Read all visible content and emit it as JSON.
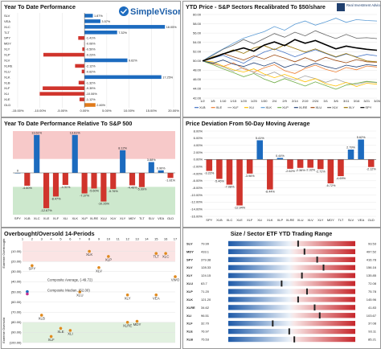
{
  "chart_data": [
    {
      "type": "bar",
      "title": "Year To Date Performance",
      "orientation": "horizontal",
      "categories": [
        "SLV",
        "VEA",
        "XLC",
        "TLT",
        "SPY",
        "MDY",
        "XLY",
        "XLP",
        "XLV",
        "XLRE",
        "XLU",
        "XLK",
        "XLB",
        "XLF",
        "XLI",
        "XLE",
        "GLD"
      ],
      "values": [
        1.87,
        3.57,
        18.05,
        7.32,
        -1.41,
        -0.06,
        -0.5,
        -9.23,
        9.62,
        -2.12,
        -0.62,
        17.25,
        -1.32,
        -9.39,
        -10.06,
        -1.12,
        2.46
      ],
      "value_labels": [
        "1.87%",
        "3.57%",
        "18.05%",
        "7.32%",
        "-1.41%",
        "-0.06%",
        "-0.50%",
        "-9.23%",
        "9.62%",
        "-2.12%",
        "-0.62%",
        "17.25%",
        "-1.32%",
        "-9.39%",
        "-10.06%",
        "-1.12%",
        "2.46%"
      ],
      "colors": {
        "positive": "#1c6bbf",
        "negative": "#d0342c",
        "highlight": "#e07a1a"
      },
      "xlim": [
        -15,
        20
      ],
      "xticks": [
        "-15.00%",
        "-10.00%",
        "-5.00%",
        "0.00%",
        "5.00%",
        "10.00%",
        "15.00%",
        "20.00%"
      ],
      "grid": true
    },
    {
      "type": "line",
      "title": "YTD Price - S&P Sectors Recalibrated To $50/share",
      "x": [
        "1/2",
        "1/5",
        "1/10",
        "1/15",
        "1/20",
        "1/25",
        "1/30",
        "2/4",
        "2/9",
        "2/14",
        "2/19",
        "2/24",
        "3/1",
        "3/6",
        "3/11",
        "3/16",
        "3/21",
        "3/26"
      ],
      "ylim": [
        42,
        60
      ],
      "yticks": [
        "42.00",
        "44.00",
        "46.00",
        "48.00",
        "50.00",
        "52.00",
        "54.00",
        "56.00",
        "58.00",
        "60.00"
      ],
      "series": [
        {
          "name": "XLB",
          "color": "#4472c4",
          "values": [
            50,
            50.6,
            51.2,
            50.3,
            49.5,
            50.8,
            51.9,
            52.6,
            51.8,
            50.9,
            51.7,
            52.4,
            51.6,
            50.8,
            51.5,
            50.9,
            51.4,
            51.1
          ]
        },
        {
          "name": "XLE",
          "color": "#ed7d31",
          "values": [
            50,
            49.4,
            48.8,
            49.6,
            48.3,
            47.6,
            48.5,
            49.2,
            47.9,
            47.3,
            48.4,
            49.1,
            48.2,
            47.6,
            48.6,
            48.1,
            48.9,
            48.7
          ]
        },
        {
          "name": "XLF",
          "color": "#a5a5a5",
          "values": [
            50,
            49.6,
            48.7,
            47.8,
            48.6,
            47.5,
            46.8,
            47.6,
            46.5,
            45.9,
            46.8,
            46.2,
            45.4,
            46.1,
            45.3,
            44.9,
            45.5,
            45.3
          ]
        },
        {
          "name": "XLI",
          "color": "#ffc000",
          "values": [
            50,
            49.8,
            48.9,
            48.1,
            47.6,
            48.3,
            47.2,
            46.4,
            47.1,
            46.3,
            45.5,
            46.2,
            45.1,
            44.6,
            45.4,
            44.5,
            45.2,
            45.0
          ]
        },
        {
          "name": "XLK",
          "color": "#5b9bd5",
          "values": [
            50,
            51.4,
            52.6,
            53.8,
            54.9,
            55.6,
            56.3,
            57.4,
            56.6,
            57.9,
            58.6,
            57.7,
            58.4,
            59.2,
            58.3,
            58.9,
            58.7,
            58.6
          ]
        },
        {
          "name": "XLP",
          "color": "#70ad47",
          "values": [
            50,
            49.2,
            48.3,
            47.5,
            46.6,
            47.3,
            46.1,
            45.3,
            46.2,
            45.4,
            44.6,
            45.5,
            44.7,
            43.9,
            44.8,
            45.2,
            45.6,
            45.4
          ]
        },
        {
          "name": "XLRE",
          "color": "#264478",
          "values": [
            50,
            49.5,
            50.2,
            49.3,
            48.8,
            49.6,
            48.9,
            49.7,
            48.6,
            49.3,
            48.7,
            49.5,
            48.8,
            48.3,
            49.1,
            48.7,
            49.2,
            49.0
          ]
        },
        {
          "name": "XLU",
          "color": "#9e480e",
          "values": [
            50,
            50.8,
            51.6,
            50.9,
            50.2,
            51.1,
            50.4,
            51.3,
            50.6,
            49.8,
            50.7,
            49.9,
            50.8,
            50.1,
            49.6,
            50.3,
            49.8,
            49.7
          ]
        },
        {
          "name": "XLV",
          "color": "#636363",
          "values": [
            50,
            51.2,
            52.5,
            53.4,
            54.6,
            53.7,
            54.8,
            55.9,
            55.1,
            56.2,
            55.4,
            56.5,
            55.6,
            54.8,
            55.7,
            54.9,
            55.0,
            54.8
          ]
        },
        {
          "name": "XLY",
          "color": "#997300",
          "values": [
            50,
            50.9,
            51.5,
            52.4,
            51.6,
            52.8,
            53.3,
            52.4,
            53.5,
            52.7,
            51.9,
            52.6,
            51.7,
            50.9,
            51.6,
            50.8,
            50.0,
            49.8
          ]
        },
        {
          "name": "SPY",
          "color": "#000000",
          "values": [
            50,
            50.7,
            51.5,
            52.2,
            52.8,
            52.1,
            53.4,
            54.1,
            53.3,
            54.6,
            53.8,
            54.4,
            53.5,
            52.6,
            53.2,
            52.8,
            52.5,
            52.3
          ]
        }
      ],
      "legend": "bottom",
      "logo": {
        "name": "SimpleVisor",
        "sub": "Real Investment Advice"
      }
    },
    {
      "type": "bar",
      "title": "Year To Date Performance Relative To S&P 500",
      "categories": [
        "SPY",
        "XLB",
        "XLC",
        "XLE",
        "XLF",
        "XLI",
        "XLK",
        "XLP",
        "XLRE",
        "XLU",
        "XLV",
        "XLY",
        "MDY",
        "TLT",
        "SLV",
        "VEA",
        "GLD"
      ],
      "values": [
        0,
        -4.6,
        13.61,
        -12.67,
        -8.47,
        -4.31,
        13.61,
        -7.37,
        -5.6,
        -10.26,
        -5.76,
        8.12,
        -4.46,
        -5.09,
        3.88,
        0.9,
        -1.81
      ],
      "value_labels": [
        "0",
        "-4.60%",
        "13.61%",
        "-12.67%",
        "-8.47%",
        "-4.31%",
        "13.61%",
        "-7.37%",
        "-5.60%",
        "-10.26%",
        "-5.76%",
        "8.12%",
        "-4.46%",
        "-5.09%",
        "3.88%",
        "0.90%",
        "-1.81%"
      ],
      "ylim": [
        -15,
        15
      ],
      "shading": {
        "overbought": "#f7c9c9",
        "oversold": "#cde8cd"
      }
    },
    {
      "type": "bar",
      "title": "Price Deviation From 50-Day Moving Average",
      "categories": [
        "SPY",
        "XLB",
        "XLC",
        "XLE",
        "XLF",
        "XLI",
        "XLK",
        "XLP",
        "XLRE",
        "XLU",
        "XLV",
        "XLY",
        "MDY",
        "TLT",
        "SLV",
        "VEA",
        "GLD"
      ],
      "values": [
        -3.22,
        -5.46,
        -7.08,
        -12.94,
        -3.96,
        5.41,
        -8.44,
        0.44,
        -2.62,
        -2.36,
        -2.32,
        -2.72,
        -6.72,
        -4.69,
        2.79,
        5.62,
        -2.12
      ],
      "value_labels": [
        "-3.22%",
        "-5.46%",
        "-7.08%",
        "-12.94%",
        "-3.96%",
        "5.41%",
        "-8.44%",
        "0.44%",
        "-2.62%",
        "-2.36%",
        "-2.32%",
        "-2.72%",
        "-6.72%",
        "-4.69%",
        "2.79%",
        "5.62%",
        "-2.12%"
      ],
      "ylim": [
        -16,
        8
      ],
      "yticks": [
        "8.00%",
        "6.00%",
        "4.00%",
        "2.00%",
        "0.00%",
        "-2.00%",
        "-4.00%",
        "-6.00%",
        "-8.00%",
        "-10.00%",
        "-12.00%",
        "-14.00%",
        "-16.00%"
      ]
    },
    {
      "type": "scatter",
      "title": "Overbought/Oversold 14-Periods",
      "xticks": [
        "1",
        "2",
        "3",
        "4",
        "5",
        "6",
        "7",
        "8",
        "9",
        "10",
        "11",
        "12",
        "13",
        "14",
        "15",
        "16",
        "17"
      ],
      "yticks": [
        "(10.00)",
        "(20.00)",
        "(30.00)",
        "(40.00)",
        "(50.00)",
        "(60.00)",
        "(70.00)",
        "(80.00)",
        "(90.00)",
        "(100.00)"
      ],
      "axis_left_top": "Extreme Overbought",
      "axis_left_bottom": "Extreme Oversold",
      "points": [
        {
          "label": "XLK",
          "x": 8,
          "y": -10
        },
        {
          "label": "XLP",
          "x": 10,
          "y": -15
        },
        {
          "label": "XLC",
          "x": 16,
          "y": -12
        },
        {
          "label": "TLT",
          "x": 15,
          "y": -12
        },
        {
          "label": "SPY",
          "x": 2,
          "y": -24
        },
        {
          "label": "XLV",
          "x": 9,
          "y": -26
        },
        {
          "label": "VWO",
          "x": 17,
          "y": -35
        },
        {
          "label": "XLU",
          "x": 7,
          "y": -50
        },
        {
          "label": "XLY",
          "x": 12,
          "y": -53
        },
        {
          "label": "VEA",
          "x": 15,
          "y": -53
        },
        {
          "label": "XLB",
          "x": 3,
          "y": -73
        },
        {
          "label": "MDY",
          "x": 13,
          "y": -79
        },
        {
          "label": "XLRE",
          "x": 12,
          "y": -80
        },
        {
          "label": "XLE",
          "x": 5,
          "y": -86
        },
        {
          "label": "XLI",
          "x": 6,
          "y": -88
        },
        {
          "label": "XLF",
          "x": 4,
          "y": -94
        }
      ],
      "composite_average": {
        "label": "Composite Average, (-49.72)",
        "value": -49.72
      },
      "composite_median": {
        "label": "Composite Median, (52.00)",
        "value": -52.0
      }
    },
    {
      "type": "bar",
      "title": "Size / Sector ETF YTD Trading Range",
      "orientation": "horizontal",
      "rows": [
        {
          "ticker": "SLV",
          "low": "79.99",
          "high": "93.53",
          "pos": 0.55
        },
        {
          "ticker": "MDY",
          "low": "433.1",
          "high": "497.52",
          "pos": 0.6
        },
        {
          "ticker": "SPY",
          "low": "379.38",
          "high": "416.78",
          "pos": 0.7
        },
        {
          "ticker": "XLV",
          "low": "128.33",
          "high": "156.16",
          "pos": 0.75
        },
        {
          "ticker": "XLY",
          "low": "124.15",
          "high": "135.85",
          "pos": 0.58
        },
        {
          "ticker": "XLU",
          "low": "63.7",
          "high": "72.08",
          "pos": 0.42
        },
        {
          "ticker": "XLP",
          "low": "71.20",
          "high": "75.78",
          "pos": 0.62
        },
        {
          "ticker": "XLK",
          "low": "121.20",
          "high": "145.96",
          "pos": 0.55
        },
        {
          "ticker": "XLRE",
          "low": "34.62",
          "high": "41.83",
          "pos": 0.68
        },
        {
          "ticker": "XLI",
          "low": "96.51",
          "high": "103.67",
          "pos": 0.72
        },
        {
          "ticker": "XLF",
          "low": "32.70",
          "high": "37.08",
          "pos": 0.35
        },
        {
          "ticker": "XLE",
          "low": "76.97",
          "high": "93.11",
          "pos": 0.48
        },
        {
          "ticker": "XLB",
          "low": "75.53",
          "high": "85.21",
          "pos": 0.52
        }
      ]
    }
  ]
}
